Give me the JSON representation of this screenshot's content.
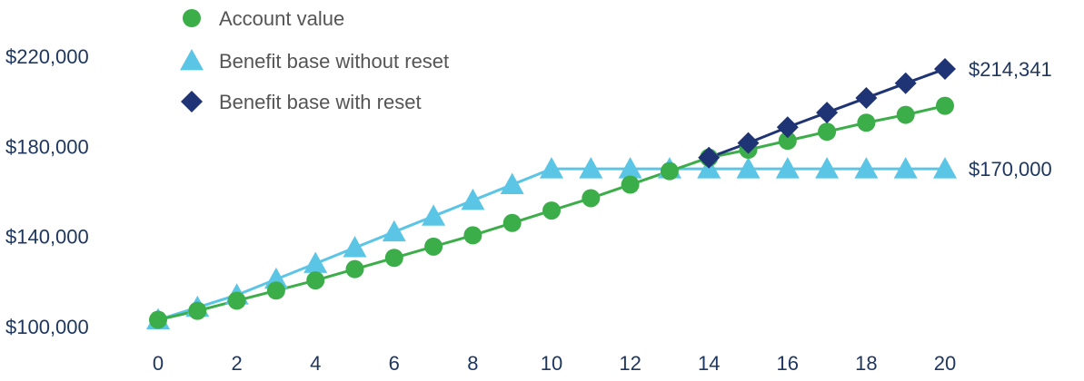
{
  "colors": {
    "account_value": "#3cae49",
    "benefit_base_without_reset": "#5bc5e6",
    "benefit_base_with_reset": "#1f3474",
    "tick_text": "#1f3760",
    "legend_text": "#555555"
  },
  "chart_data": {
    "type": "line",
    "title": "",
    "xlabel": "",
    "ylabel": "",
    "x": [
      0,
      1,
      2,
      3,
      4,
      5,
      6,
      7,
      8,
      9,
      10,
      11,
      12,
      13,
      14,
      15,
      16,
      17,
      18,
      19,
      20
    ],
    "xlim": [
      0,
      20
    ],
    "ylim": [
      100000,
      220000
    ],
    "x_ticks": [
      0,
      2,
      4,
      6,
      8,
      10,
      12,
      14,
      16,
      18,
      20
    ],
    "x_tick_labels": [
      "0",
      "2",
      "4",
      "6",
      "8",
      "10",
      "12",
      "14",
      "16",
      "18",
      "20"
    ],
    "y_ticks": [
      100000,
      140000,
      180000,
      220000
    ],
    "y_tick_labels": [
      "$100,000",
      "$140,000",
      "$180,000",
      "$220,000"
    ],
    "grid": false,
    "legend_position": "top-left",
    "series": [
      {
        "name": "Account value",
        "marker": "circle",
        "color": "#3cae49",
        "x": [
          0,
          1,
          2,
          3,
          4,
          5,
          6,
          7,
          8,
          9,
          10,
          11,
          12,
          13,
          14,
          15,
          16,
          17,
          18,
          19,
          20
        ],
        "values": [
          103000,
          107000,
          111500,
          116000,
          120500,
          125500,
          130500,
          135500,
          140500,
          146000,
          151500,
          157000,
          163000,
          169000,
          175000,
          178500,
          182500,
          186500,
          190500,
          194000,
          198000
        ]
      },
      {
        "name": "Benefit base without reset",
        "marker": "triangle",
        "color": "#5bc5e6",
        "x": [
          0,
          1,
          2,
          3,
          4,
          5,
          6,
          7,
          8,
          9,
          10,
          11,
          12,
          13,
          14,
          15,
          16,
          17,
          18,
          19,
          20
        ],
        "values": [
          103000,
          108500,
          114000,
          121000,
          128000,
          135000,
          142000,
          149000,
          156000,
          163000,
          170000,
          170000,
          170000,
          170000,
          170000,
          170000,
          170000,
          170000,
          170000,
          170000,
          170000
        ]
      },
      {
        "name": "Benefit base with reset",
        "marker": "diamond",
        "color": "#1f3474",
        "x": [
          14,
          15,
          16,
          17,
          18,
          19,
          20
        ],
        "values": [
          175000,
          181500,
          188500,
          195000,
          201500,
          208000,
          214341
        ]
      }
    ],
    "annotations": [
      {
        "text": "$214,341",
        "series": "Benefit base with reset",
        "x": 20,
        "y": 214341
      },
      {
        "text": "$170,000",
        "series": "Benefit base without reset",
        "x": 20,
        "y": 170000
      }
    ]
  }
}
